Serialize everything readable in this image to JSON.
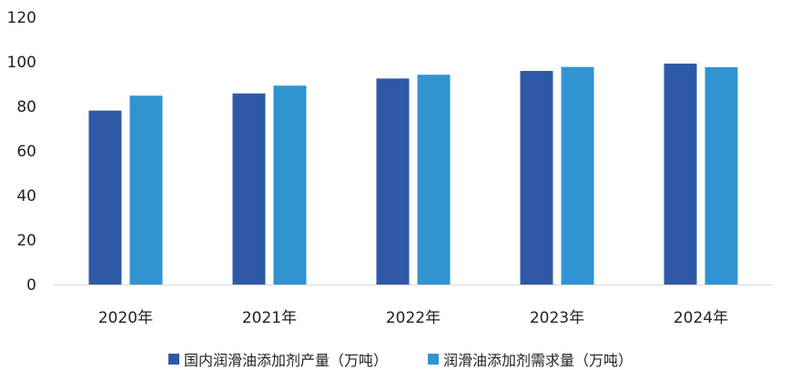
{
  "chart_data": {
    "type": "bar",
    "title": "",
    "xlabel": "",
    "ylabel": "",
    "categories": [
      "2020年",
      "2021年",
      "2022年",
      "2023年",
      "2024年"
    ],
    "series": [
      {
        "name": "国内润滑油添加剂产量（万吨）",
        "color": "#2E59A7",
        "values": [
          78.1,
          85.8,
          92.5,
          95.9,
          99.2
        ]
      },
      {
        "name": "润滑油添加剂需求量（万吨）",
        "color": "#3194D0",
        "values": [
          84.8,
          89.3,
          94.2,
          97.7,
          97.6
        ]
      }
    ],
    "ylim": [
      0,
      120
    ],
    "yticks": [
      "0",
      "20",
      "40",
      "60",
      "80",
      "100",
      "120"
    ],
    "grid": false,
    "legend_position": "bottom"
  }
}
